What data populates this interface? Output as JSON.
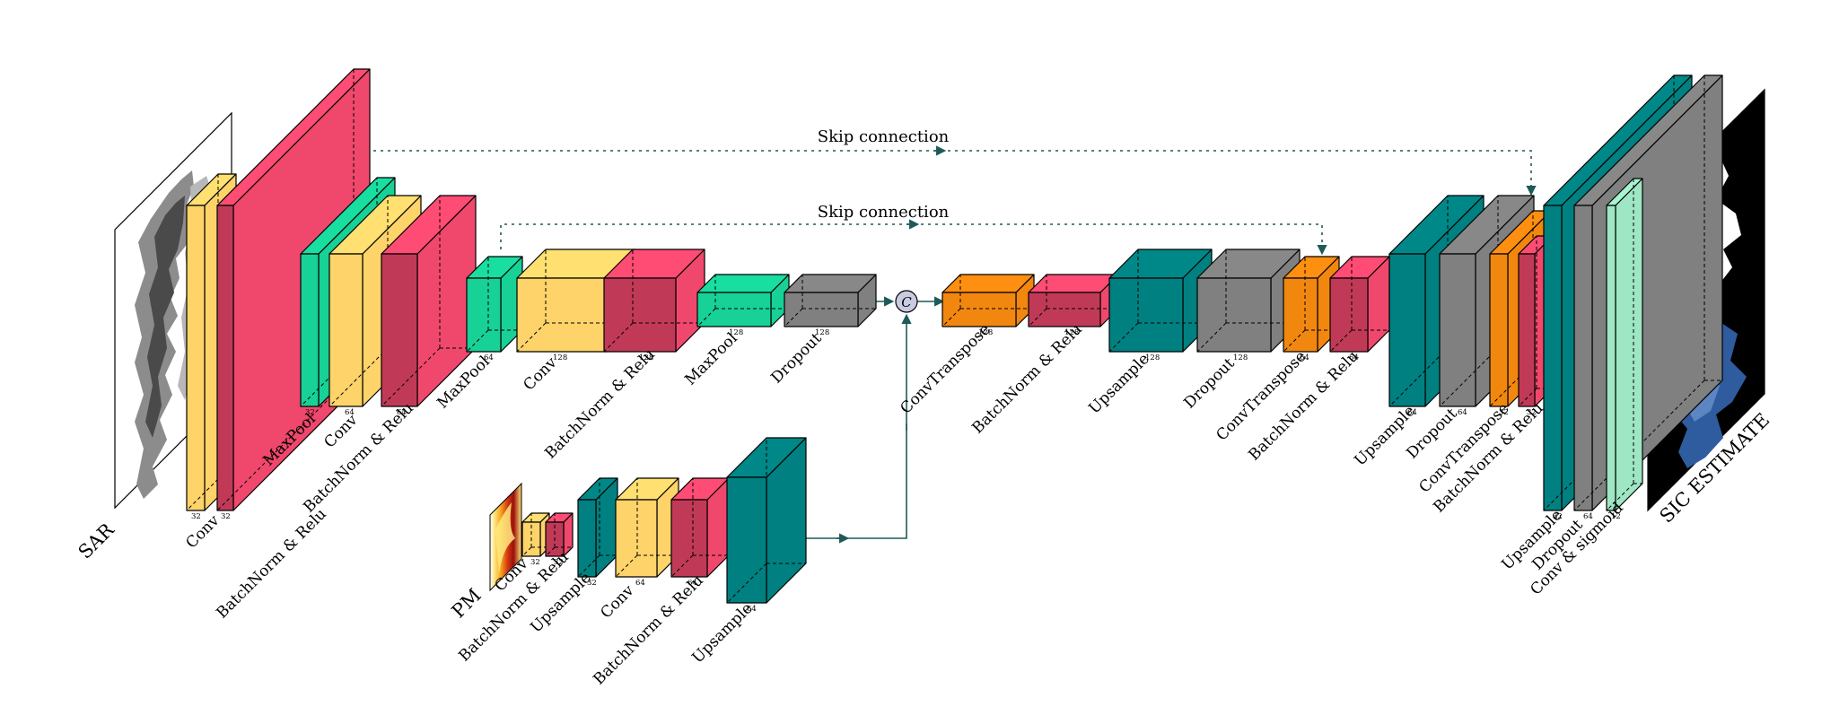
{
  "colors": {
    "conv": "#fdd36a",
    "bn_relu": "#f0486d",
    "bn_relu_dark": "#c1345a",
    "maxpool": "#17d197",
    "dropout": "#808080",
    "convtranspose": "#f2870f",
    "upsample": "#008080",
    "sigmoid": "#9ee6c4",
    "connector": "#1d5a5a"
  },
  "inputs": {
    "sar_label": "SAR",
    "pm_label": "PM",
    "output_label": "SIC ESTIMATE",
    "concat_symbol": "C"
  },
  "skip_connections": [
    {
      "label": "Skip connection"
    },
    {
      "label": "Skip connection"
    }
  ],
  "layers": [
    {
      "id": "e1-conv",
      "label": "Conv",
      "size": "32",
      "kind": "conv"
    },
    {
      "id": "e1-bn",
      "label": "BatchNorm & Relu",
      "size": "32",
      "kind": "bn_relu"
    },
    {
      "id": "e2-mp",
      "label": "MaxPool",
      "size": "32",
      "kind": "maxpool"
    },
    {
      "id": "e2-conv",
      "label": "Conv",
      "size": "64",
      "kind": "conv"
    },
    {
      "id": "e2-bn",
      "label": "BatchNorm & Relu",
      "size": "64",
      "kind": "bn_relu"
    },
    {
      "id": "e3-mp",
      "label": "MaxPool",
      "size": "64",
      "kind": "maxpool"
    },
    {
      "id": "e3-conv",
      "label": "Conv",
      "size": "128",
      "kind": "conv"
    },
    {
      "id": "e3-bn",
      "label": "BatchNorm & Relu",
      "size": "128",
      "kind": "bn_relu"
    },
    {
      "id": "e4-mp",
      "label": "MaxPool",
      "size": "128",
      "kind": "maxpool"
    },
    {
      "id": "e4-do",
      "label": "Dropout",
      "size": "128",
      "kind": "dropout"
    },
    {
      "id": "d1-ct",
      "label": "ConvTranspose",
      "size": "128",
      "kind": "convtranspose"
    },
    {
      "id": "d1-bn",
      "label": "BatchNorm & Relu",
      "size": "128",
      "kind": "bn_relu"
    },
    {
      "id": "d2-up",
      "label": "Upsample",
      "size": "128",
      "kind": "upsample"
    },
    {
      "id": "d2-do",
      "label": "Dropout",
      "size": "128",
      "kind": "dropout"
    },
    {
      "id": "d2-ct",
      "label": "ConvTranspose",
      "size": "64",
      "kind": "convtranspose"
    },
    {
      "id": "d2-bn",
      "label": "BatchNorm & Relu",
      "size": "64",
      "kind": "bn_relu"
    },
    {
      "id": "d3-up",
      "label": "Upsample",
      "size": "64",
      "kind": "upsample"
    },
    {
      "id": "d3-do",
      "label": "Dropout",
      "size": "64",
      "kind": "dropout"
    },
    {
      "id": "d3-ct",
      "label": "ConvTranspose",
      "size": "32",
      "kind": "convtranspose"
    },
    {
      "id": "d3-bn",
      "label": "BatchNorm & Relu",
      "size": "32",
      "kind": "bn_relu"
    },
    {
      "id": "out-up",
      "label": "Upsample",
      "size": "32",
      "kind": "upsample"
    },
    {
      "id": "out-do",
      "label": "Dropout",
      "size": "64",
      "kind": "dropout"
    },
    {
      "id": "out-cs",
      "label": "Conv & sigmoid",
      "size": "12",
      "kind": "conv_sigmoid"
    },
    {
      "id": "pm-conv",
      "label": "Conv",
      "size": "32",
      "kind": "conv"
    },
    {
      "id": "pm-bn",
      "label": "BatchNorm & Relu",
      "size": "32",
      "kind": "bn_relu"
    },
    {
      "id": "pm-up1",
      "label": "Upsample",
      "size": "32",
      "kind": "upsample"
    },
    {
      "id": "pm-conv2",
      "label": "Conv",
      "size": "64",
      "kind": "conv"
    },
    {
      "id": "pm-bn2",
      "label": "BatchNorm & Relu",
      "size": "64",
      "kind": "bn_relu"
    },
    {
      "id": "pm-up2",
      "label": "Upsample",
      "size": "64",
      "kind": "upsample"
    }
  ]
}
